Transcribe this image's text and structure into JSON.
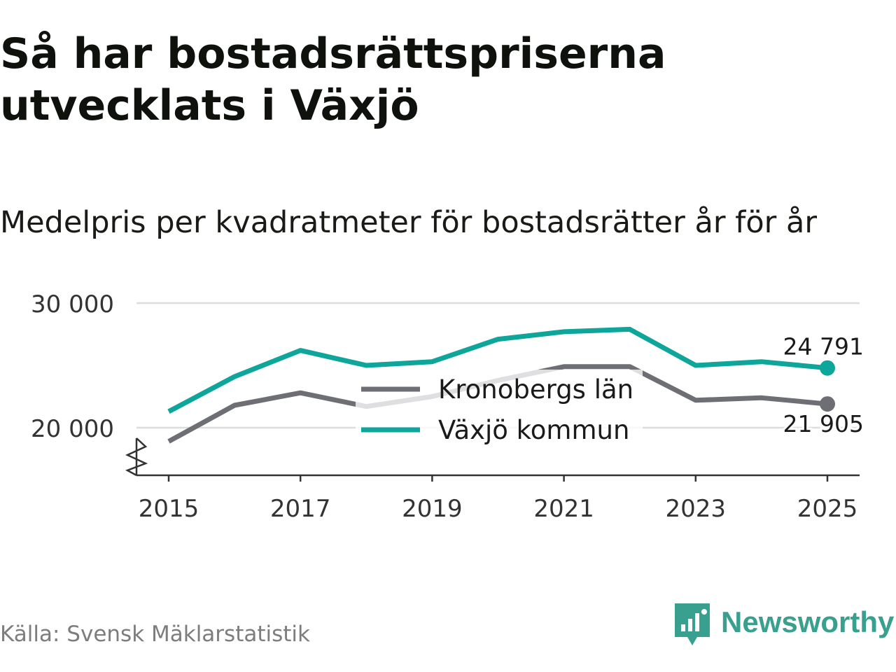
{
  "title": "Så har bostadsrättspriserna utvecklats i Växjö",
  "subtitle": "Medelpris per kvadratmeter för bostadsrätter år för år",
  "source": "Källa: Svensk Mäklarstatistik",
  "brand": {
    "name": "Newsworthy",
    "icon": "bar-chart-speech-bubble-icon",
    "color": "#39a08f"
  },
  "chart_data": {
    "type": "line",
    "title": "Så har bostadsrättspriserna utvecklats i Växjö",
    "subtitle": "Medelpris per kvadratmeter för bostadsrätter år för år",
    "xlabel": "",
    "ylabel": "",
    "x": [
      2015,
      2016,
      2017,
      2018,
      2019,
      2020,
      2021,
      2022,
      2023,
      2024,
      2025
    ],
    "xticks": [
      2015,
      2017,
      2019,
      2021,
      2023,
      2025
    ],
    "xtick_labels": [
      "2015",
      "2017",
      "2019",
      "2021",
      "2023",
      "2025"
    ],
    "xlim": [
      2014.75,
      2025.25
    ],
    "yticks": [
      20000,
      30000
    ],
    "ytick_labels": [
      "20 000",
      "30 000"
    ],
    "ylim": [
      16200,
      30000
    ],
    "y_axis_break": true,
    "grid": true,
    "legend_position": "center",
    "series": [
      {
        "name": "Kronobergs län",
        "color": "#6e6e75",
        "values": [
          18900,
          21800,
          22800,
          21700,
          22500,
          23800,
          24900,
          24900,
          22200,
          22400,
          21905
        ],
        "end_label": "21 905"
      },
      {
        "name": "Växjö kommun",
        "color": "#0ea59a",
        "values": [
          21300,
          24100,
          26200,
          25000,
          25300,
          27100,
          27700,
          27900,
          25000,
          25300,
          24791
        ],
        "end_label": "24 791"
      }
    ]
  }
}
